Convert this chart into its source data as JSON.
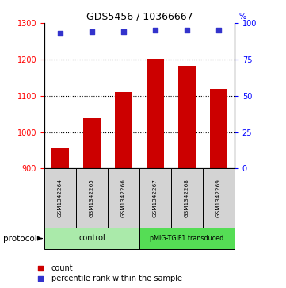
{
  "title": "GDS5456 / 10366667",
  "samples": [
    "GSM1342264",
    "GSM1342265",
    "GSM1342266",
    "GSM1342267",
    "GSM1342268",
    "GSM1342269"
  ],
  "counts": [
    955,
    1038,
    1110,
    1202,
    1182,
    1118
  ],
  "percentile_ranks": [
    93,
    94,
    94,
    95,
    95,
    95
  ],
  "ylim_left": [
    900,
    1300
  ],
  "ylim_right": [
    0,
    100
  ],
  "yticks_left": [
    900,
    1000,
    1100,
    1200,
    1300
  ],
  "yticks_right": [
    0,
    25,
    50,
    75,
    100
  ],
  "bar_color": "#cc0000",
  "dot_color": "#3333cc",
  "control_color": "#aaeaaa",
  "pmig_color": "#55dd55",
  "legend_bar_label": "count",
  "legend_dot_label": "percentile rank within the sample",
  "protocol_label": "protocol",
  "sample_box_color": "#d3d3d3",
  "bg_color": "#ffffff",
  "title_fontsize": 9,
  "axis_fontsize": 7,
  "bar_width": 0.55
}
